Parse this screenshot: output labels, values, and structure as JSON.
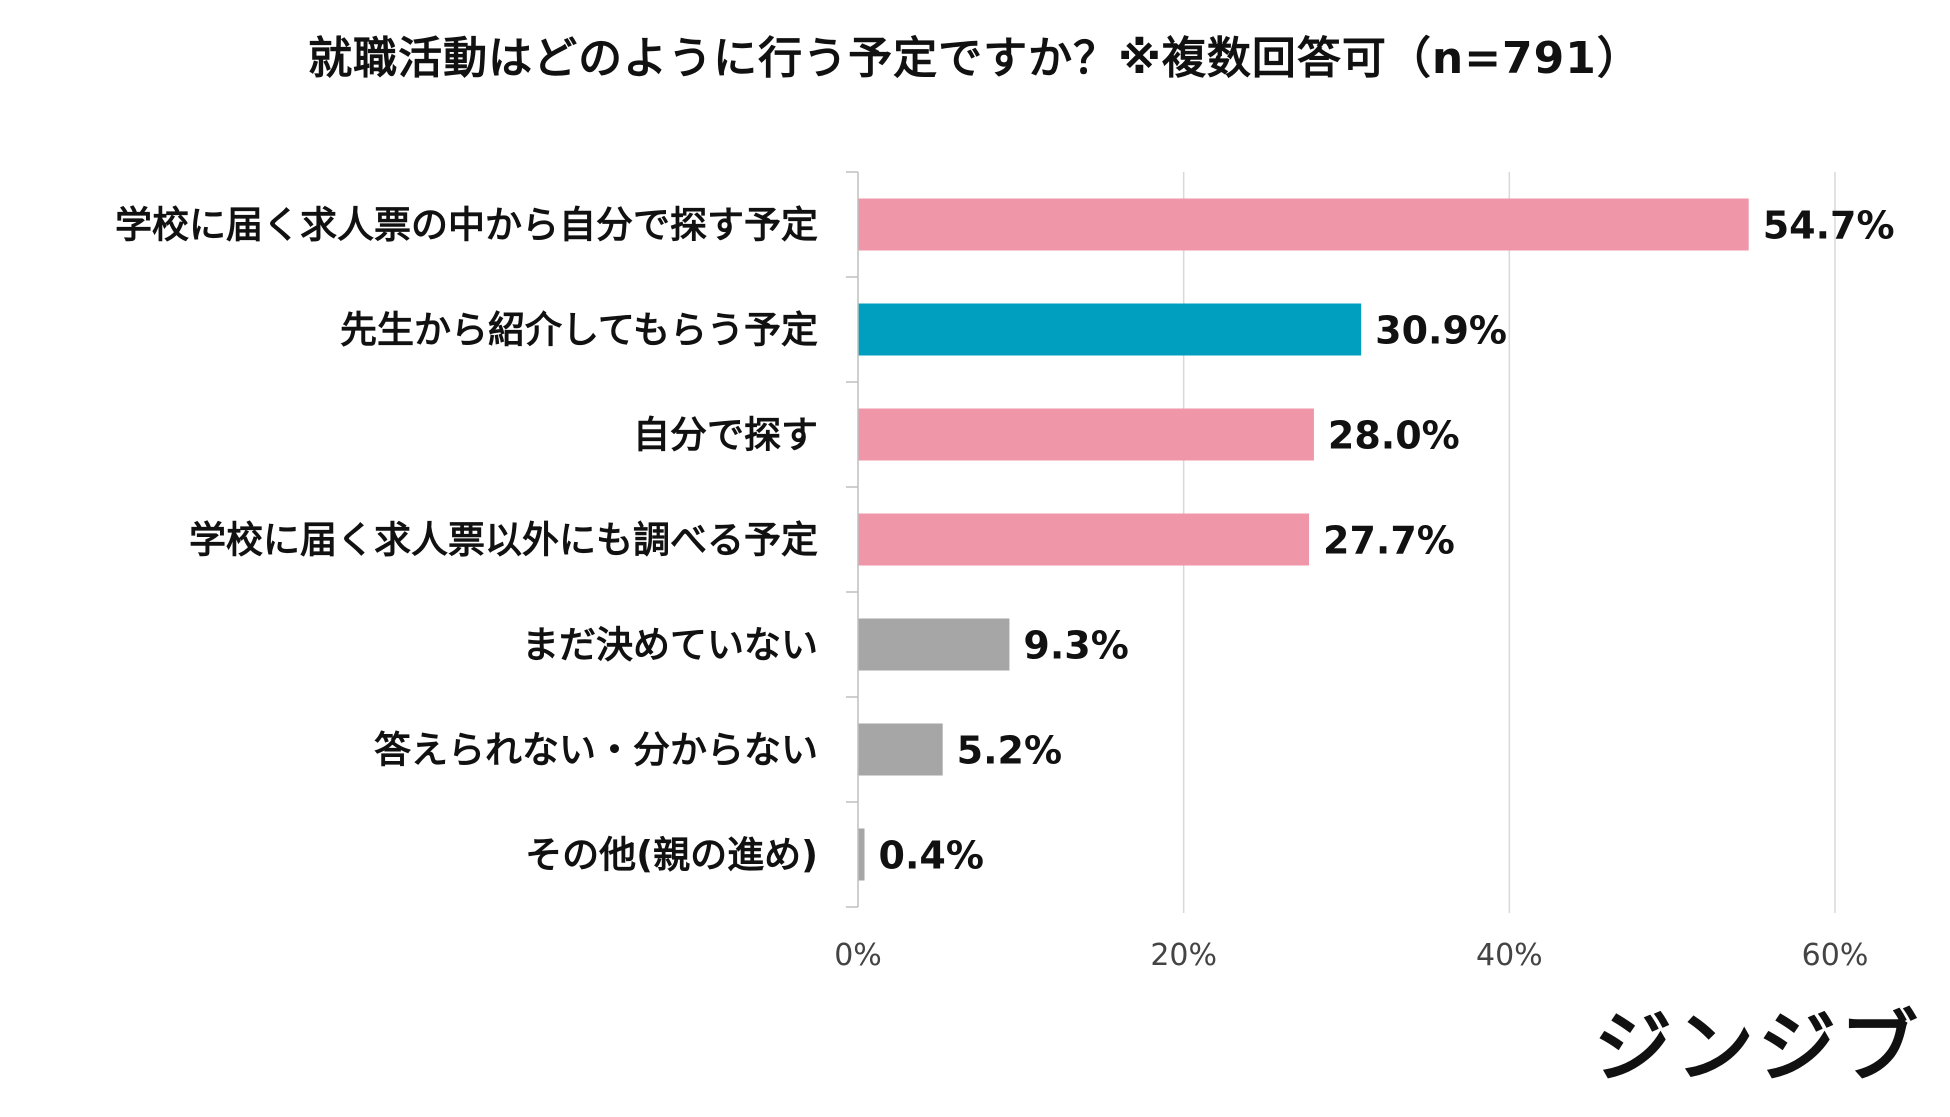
{
  "chart_data": {
    "type": "bar",
    "orientation": "horizontal",
    "title": "就職活動はどのように行う予定ですか？※複数回答可（n=791）",
    "categories": [
      "学校に届く求人票の中から自分で探す予定",
      "先生から紹介してもらう予定",
      "自分で探す",
      "学校に届く求人票以外にも調べる予定",
      "まだ決めていない",
      "答えられない・分からない",
      "その他(親の進め)"
    ],
    "values": [
      54.7,
      30.9,
      28.0,
      27.7,
      9.3,
      5.2,
      0.4
    ],
    "value_labels": [
      "54.7%",
      "30.9%",
      "28.0%",
      "27.7%",
      "9.3%",
      "5.2%",
      "0.4%"
    ],
    "bar_colors": [
      "#EF96A8",
      "#009FBF",
      "#EF96A8",
      "#EF96A8",
      "#A6A6A6",
      "#A6A6A6",
      "#A6A6A6"
    ],
    "xlim": [
      0,
      60
    ],
    "x_ticks": [
      0,
      20,
      40,
      60
    ],
    "x_tick_labels": [
      "0%",
      "20%",
      "40%",
      "60%"
    ],
    "grid": true,
    "legend": "none"
  },
  "brand": {
    "logo_text": "ジンジブ"
  }
}
